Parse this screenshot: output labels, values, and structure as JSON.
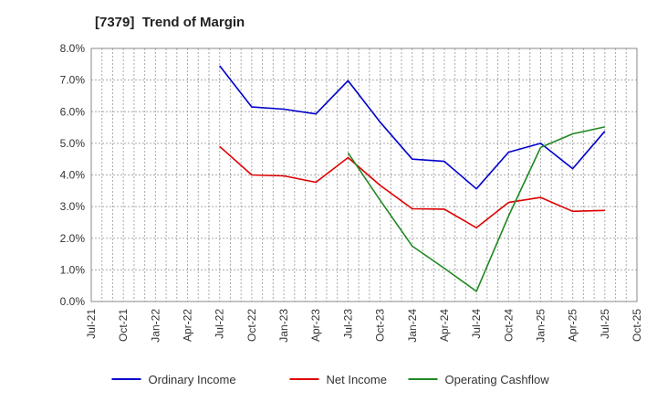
{
  "chart_data": {
    "type": "line",
    "title": "[7379]  Trend of Margin",
    "xlabel": "",
    "ylabel": "",
    "grid": true,
    "ylim": [
      0,
      8
    ],
    "y_ticks": [
      "0.0%",
      "1.0%",
      "2.0%",
      "3.0%",
      "4.0%",
      "5.0%",
      "6.0%",
      "7.0%",
      "8.0%"
    ],
    "categories": [
      "Jul-21",
      "Oct-21",
      "Jan-22",
      "Apr-22",
      "Jul-22",
      "Oct-22",
      "Jan-23",
      "Apr-23",
      "Jul-23",
      "Oct-23",
      "Jan-24",
      "Apr-24",
      "Jul-24",
      "Oct-24",
      "Jan-25",
      "Apr-25",
      "Jul-25",
      "Oct-25"
    ],
    "legend_position": "bottom",
    "series": [
      {
        "name": "Ordinary Income",
        "color": "#0000cc",
        "values": [
          null,
          null,
          null,
          null,
          7.45,
          6.15,
          6.08,
          5.93,
          6.98,
          5.67,
          4.5,
          4.43,
          3.56,
          4.72,
          5.0,
          4.2,
          5.38,
          null
        ]
      },
      {
        "name": "Net Income",
        "color": "#dd0000",
        "values": [
          null,
          null,
          null,
          null,
          4.9,
          4.0,
          3.97,
          3.77,
          4.55,
          3.67,
          2.93,
          2.92,
          2.33,
          3.13,
          3.29,
          2.85,
          2.88,
          null
        ]
      },
      {
        "name": "Operating Cashflow",
        "color": "#228822",
        "values": [
          null,
          null,
          null,
          null,
          null,
          null,
          null,
          null,
          4.7,
          3.2,
          1.75,
          1.05,
          0.32,
          2.7,
          4.87,
          5.3,
          5.52,
          null
        ]
      }
    ]
  }
}
